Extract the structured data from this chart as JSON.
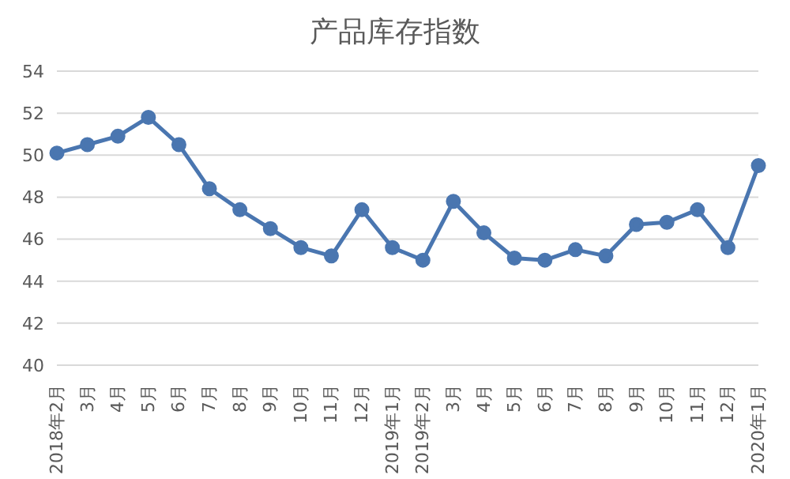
{
  "chart_data": {
    "type": "line",
    "title": "产品库存指数",
    "categories": [
      "2018年2月",
      "3月",
      "4月",
      "5月",
      "6月",
      "7月",
      "8月",
      "9月",
      "10月",
      "11月",
      "12月",
      "2019年1月",
      "2019年2月",
      "3月",
      "4月",
      "5月",
      "6月",
      "7月",
      "8月",
      "9月",
      "10月",
      "11月",
      "12月",
      "2020年1月"
    ],
    "series": [
      {
        "color": "#4a76b0",
        "values": [
          50.1,
          50.5,
          50.9,
          51.8,
          50.5,
          48.4,
          47.4,
          46.5,
          45.6,
          45.2,
          47.4,
          45.6,
          45.0,
          47.8,
          46.3,
          45.1,
          45.0,
          45.5,
          45.2,
          46.7,
          46.8,
          47.4,
          45.6,
          49.5
        ]
      }
    ],
    "ylim": [
      40,
      54
    ],
    "yticks": [
      40,
      42,
      44,
      46,
      48,
      50,
      52,
      54
    ],
    "grid": "y",
    "legend": false,
    "marker": "circle",
    "line_style": "solid"
  }
}
